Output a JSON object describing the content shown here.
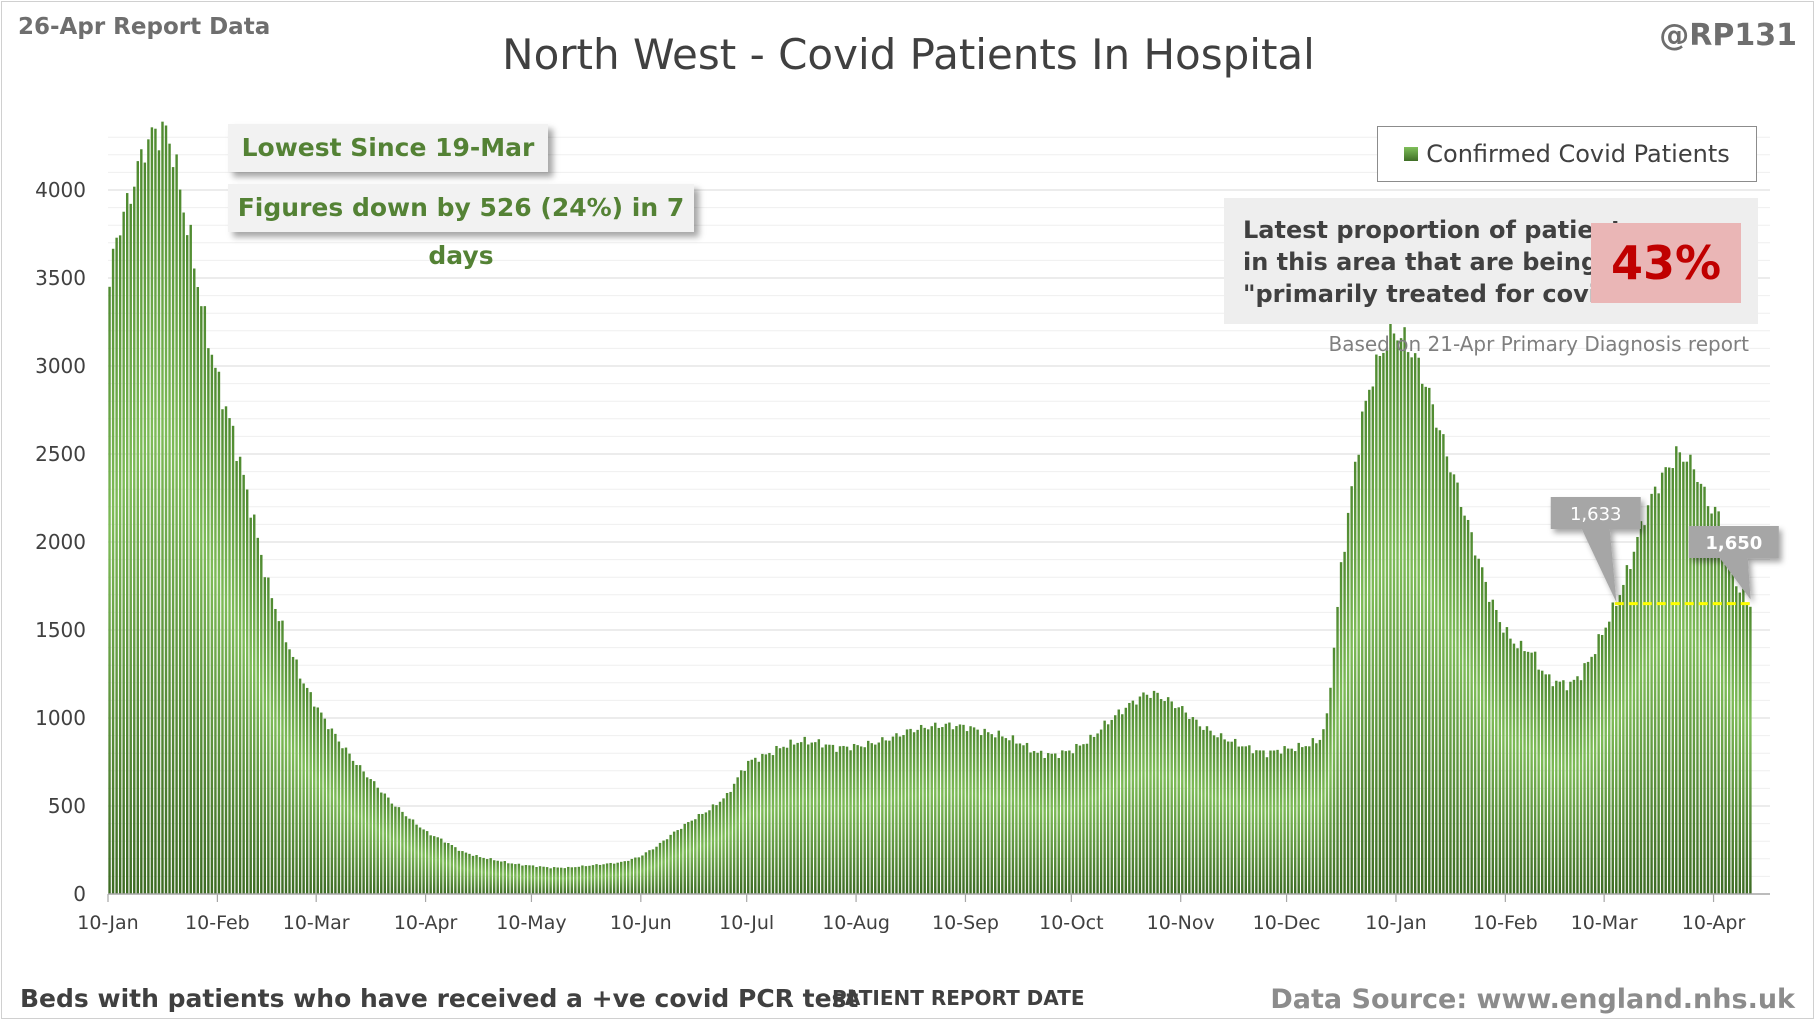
{
  "header": {
    "report_date": "26-Apr Report Data",
    "handle": "@RP131",
    "title": "North West - Covid Patients In Hospital"
  },
  "footer": {
    "left": "Beds with patients who have received a +ve covid PCR test",
    "xlabel": "PATIENT REPORT DATE",
    "source": "Data Source: www.england.nhs.uk"
  },
  "callouts": {
    "lowest_since": "Lowest Since 19-Mar",
    "figures_down": "Figures down by 526 (24%) in 7 days"
  },
  "proportion": {
    "text": "Latest proportion of patients\nin this area that are being\n\"primarily treated for covid\".",
    "value": "43%",
    "based_on": "Based on 21-Apr Primary Diagnosis report"
  },
  "chart_data": {
    "type": "bar",
    "series": [
      {
        "name": "Confirmed Covid Patients"
      }
    ],
    "ylim": [
      0,
      4500
    ],
    "y_ticks": [
      0,
      500,
      1000,
      1500,
      2000,
      2500,
      3000,
      3500,
      4000
    ],
    "x_ticks": [
      "10-Jan",
      "10-Feb",
      "10-Mar",
      "10-Apr",
      "10-May",
      "10-Jun",
      "10-Jul",
      "10-Aug",
      "10-Sep",
      "10-Oct",
      "10-Nov",
      "10-Dec",
      "10-Jan",
      "10-Feb",
      "10-Mar",
      "10-Apr"
    ],
    "x_tick_day_index": [
      0,
      31,
      59,
      90,
      120,
      151,
      181,
      212,
      243,
      273,
      304,
      334,
      365,
      396,
      424,
      455
    ],
    "start_date": "2021-01-10",
    "end_date": "2022-04-25",
    "grid": "horizontal",
    "legend_position": "top-right",
    "colors": {
      "bar_top": "#8fcf66",
      "bar_bottom": "#3d6b24",
      "marker_line": "#ffff00",
      "label_bg": "#a6a6a6"
    },
    "keypoints": [
      [
        0,
        3450
      ],
      [
        2,
        3750
      ],
      [
        4,
        3850
      ],
      [
        7,
        4050
      ],
      [
        10,
        4250
      ],
      [
        13,
        4330
      ],
      [
        16,
        4330
      ],
      [
        18,
        4220
      ],
      [
        20,
        4000
      ],
      [
        23,
        3700
      ],
      [
        27,
        3250
      ],
      [
        31,
        2900
      ],
      [
        35,
        2620
      ],
      [
        40,
        2200
      ],
      [
        45,
        1750
      ],
      [
        50,
        1450
      ],
      [
        55,
        1200
      ],
      [
        60,
        1020
      ],
      [
        65,
        870
      ],
      [
        70,
        740
      ],
      [
        75,
        630
      ],
      [
        80,
        520
      ],
      [
        85,
        430
      ],
      [
        90,
        350
      ],
      [
        95,
        300
      ],
      [
        100,
        240
      ],
      [
        105,
        210
      ],
      [
        110,
        190
      ],
      [
        115,
        170
      ],
      [
        120,
        160
      ],
      [
        125,
        150
      ],
      [
        130,
        150
      ],
      [
        135,
        160
      ],
      [
        140,
        170
      ],
      [
        145,
        180
      ],
      [
        150,
        210
      ],
      [
        155,
        270
      ],
      [
        160,
        350
      ],
      [
        165,
        420
      ],
      [
        170,
        480
      ],
      [
        175,
        560
      ],
      [
        178,
        660
      ],
      [
        181,
        750
      ],
      [
        186,
        790
      ],
      [
        191,
        840
      ],
      [
        196,
        870
      ],
      [
        201,
        860
      ],
      [
        206,
        830
      ],
      [
        212,
        840
      ],
      [
        217,
        860
      ],
      [
        222,
        890
      ],
      [
        227,
        930
      ],
      [
        232,
        950
      ],
      [
        237,
        960
      ],
      [
        243,
        950
      ],
      [
        248,
        920
      ],
      [
        253,
        900
      ],
      [
        258,
        860
      ],
      [
        263,
        800
      ],
      [
        268,
        790
      ],
      [
        273,
        820
      ],
      [
        278,
        880
      ],
      [
        283,
        980
      ],
      [
        288,
        1060
      ],
      [
        293,
        1130
      ],
      [
        296,
        1140
      ],
      [
        300,
        1100
      ],
      [
        304,
        1050
      ],
      [
        309,
        960
      ],
      [
        314,
        900
      ],
      [
        319,
        860
      ],
      [
        324,
        820
      ],
      [
        328,
        800
      ],
      [
        332,
        820
      ],
      [
        336,
        830
      ],
      [
        340,
        850
      ],
      [
        343,
        880
      ],
      [
        345,
        1000
      ],
      [
        347,
        1400
      ],
      [
        349,
        1850
      ],
      [
        352,
        2300
      ],
      [
        355,
        2700
      ],
      [
        358,
        2950
      ],
      [
        361,
        3100
      ],
      [
        364,
        3200
      ],
      [
        367,
        3150
      ],
      [
        370,
        3050
      ],
      [
        373,
        2900
      ],
      [
        376,
        2700
      ],
      [
        379,
        2500
      ],
      [
        382,
        2300
      ],
      [
        385,
        2100
      ],
      [
        388,
        1900
      ],
      [
        391,
        1700
      ],
      [
        394,
        1550
      ],
      [
        397,
        1450
      ],
      [
        400,
        1400
      ],
      [
        403,
        1380
      ],
      [
        405,
        1300
      ],
      [
        408,
        1220
      ],
      [
        411,
        1200
      ],
      [
        414,
        1190
      ],
      [
        417,
        1250
      ],
      [
        420,
        1350
      ],
      [
        423,
        1480
      ],
      [
        426,
        1610
      ],
      [
        429,
        1760
      ],
      [
        432,
        1950
      ],
      [
        435,
        2150
      ],
      [
        438,
        2300
      ],
      [
        441,
        2400
      ],
      [
        444,
        2500
      ],
      [
        447,
        2480
      ],
      [
        450,
        2380
      ],
      [
        453,
        2220
      ],
      [
        456,
        2150
      ],
      [
        459,
        1880
      ],
      [
        462,
        1720
      ],
      [
        465,
        1650
      ]
    ],
    "annotations": [
      {
        "label": "1,633",
        "day": 427,
        "value": 1633
      },
      {
        "label": "1,650",
        "day": 465,
        "value": 1650
      }
    ]
  }
}
